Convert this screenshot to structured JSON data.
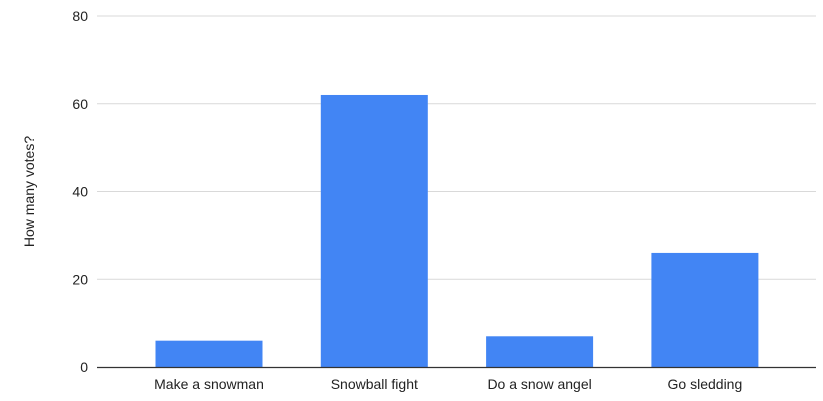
{
  "chart_data": {
    "type": "bar",
    "title": "",
    "xlabel": "",
    "ylabel": "How many votes?",
    "categories": [
      "Make a snowman",
      "Snowball fight",
      "Do a snow angel",
      "Go sledding"
    ],
    "values": [
      6,
      62,
      7,
      26
    ],
    "ylim": [
      0,
      80
    ],
    "yticks": [
      "0",
      "20",
      "40",
      "60",
      "80"
    ],
    "grid": true,
    "legend": "none",
    "colors": {
      "bar": "#4285f4",
      "gridline": "#d9d9d9",
      "axis": "#333333",
      "text": "#222222"
    }
  }
}
